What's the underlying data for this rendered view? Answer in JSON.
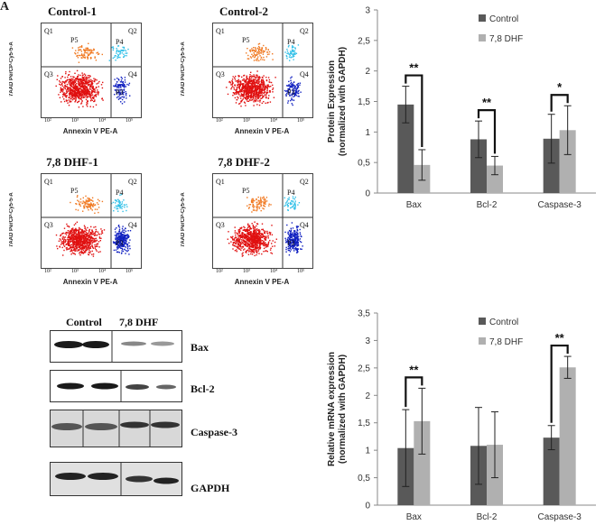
{
  "panel_letter": "A",
  "flow": {
    "plots": [
      {
        "title": "Control-1"
      },
      {
        "title": "Control-2"
      },
      {
        "title": "7,8 DHF-1"
      },
      {
        "title": "7,8 DHF-2"
      }
    ],
    "ylabel": "7AAD PerCP-Cy5-5-A",
    "xlabel": "Annexin V PE-A",
    "quadrants": {
      "q1": "Q1",
      "q2": "Q2",
      "q3": "Q3",
      "q4": "Q4",
      "p3": "P3",
      "p4": "P4",
      "p5": "P5"
    },
    "ticks": [
      "10²",
      "10³",
      "10⁴",
      "10⁵"
    ],
    "colors": {
      "red": "#e01010",
      "orange": "#f07820",
      "cyan": "#30c0e8",
      "blue": "#1020c0"
    }
  },
  "western": {
    "headers": [
      "Control",
      "7,8 DHF"
    ],
    "rows": [
      "Bax",
      "Bcl-2",
      "Caspase-3",
      "GAPDH"
    ]
  },
  "chart_data": [
    {
      "type": "bar",
      "title": "",
      "ylabel": "Protein Expression (normalized with GAPDH)",
      "ylabel_line1": "Protein Expression",
      "ylabel_line2": "(normalized with GAPDH)",
      "xlabel": "",
      "categories": [
        "Bax",
        "Bcl-2",
        "Caspase-3"
      ],
      "series": [
        {
          "name": "Control",
          "values": [
            1.45,
            0.88,
            0.89
          ],
          "errors": [
            0.3,
            0.3,
            0.4
          ],
          "color": "#595959"
        },
        {
          "name": "7,8 DHF",
          "values": [
            0.46,
            0.45,
            1.03
          ],
          "errors": [
            0.25,
            0.15,
            0.4
          ],
          "color": "#b0b0b0"
        }
      ],
      "yticks": [
        "0",
        "0,5",
        "1",
        "1,5",
        "2",
        "2,5",
        "3"
      ],
      "ylim": [
        0,
        3
      ],
      "significance": [
        "**",
        "**",
        "*"
      ],
      "legend_position": "top-right",
      "grid": false
    },
    {
      "type": "bar",
      "title": "",
      "ylabel": "Relative mRNA expression (normalized with GAPDH)",
      "ylabel_line1": "Relative mRNA expression",
      "ylabel_line2": "(normalized with GAPDH)",
      "xlabel": "",
      "categories": [
        "Bax",
        "Bcl-2",
        "Caspase-3"
      ],
      "series": [
        {
          "name": "Control",
          "values": [
            1.04,
            1.08,
            1.23
          ],
          "errors": [
            0.7,
            0.7,
            0.22
          ],
          "color": "#595959"
        },
        {
          "name": "7,8 DHF",
          "values": [
            1.53,
            1.1,
            2.51
          ],
          "errors": [
            0.6,
            0.6,
            0.2
          ],
          "color": "#b0b0b0"
        }
      ],
      "yticks": [
        "0",
        "0,5",
        "1",
        "1,5",
        "2",
        "2,5",
        "3",
        "3,5"
      ],
      "ylim": [
        0,
        3.5
      ],
      "significance": [
        "**",
        "",
        "**"
      ],
      "legend_position": "top-right",
      "grid": false
    }
  ]
}
